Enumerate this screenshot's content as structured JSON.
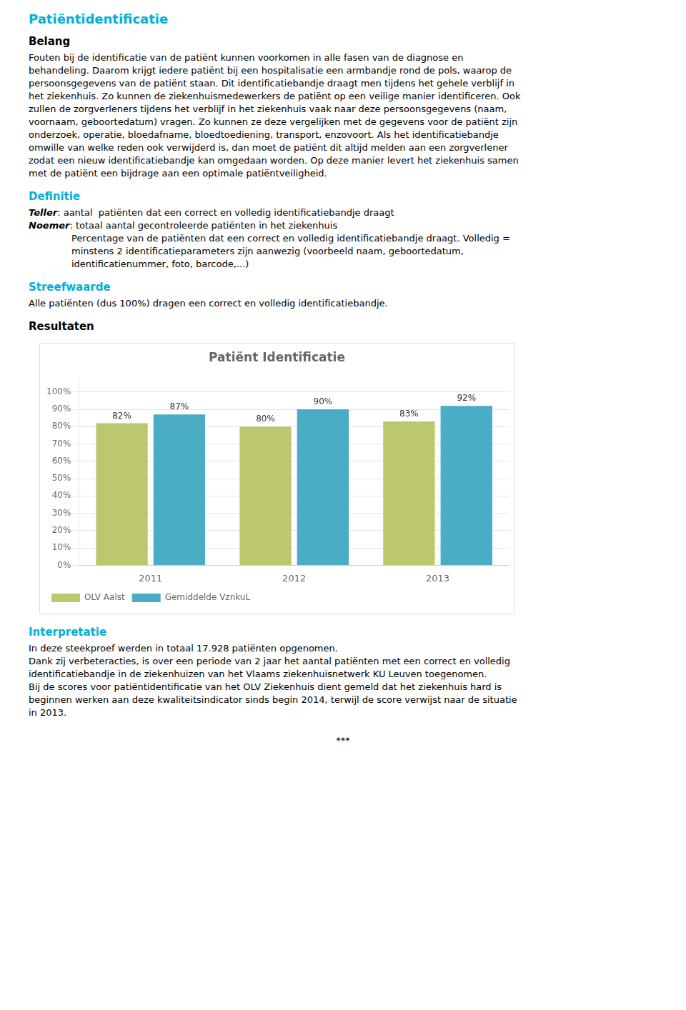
{
  "title": "Patiëntidentificatie",
  "title_color": "#00b0d8",
  "sections": [
    {
      "heading": "Belang",
      "color": "#000000",
      "lines": [
        "Fouten bij de identificatie van de patiënt kunnen voorkomen in alle fasen van de diagnose en",
        "behandeling. Daarom krijgt iedere patiënt bij een hospitalisatie een armbandje rond de pols, waarop de",
        "persoonsgegevens van de patiënt staan. Dit identificatiebandje draagt men tijdens het gehele verblijf in",
        "het ziekenhuis. Zo kunnen de ziekenhuismedewerkers de patiënt op een veilige manier identificeren. Ook",
        "zullen de zorgverleners tijdens het verblijf in het ziekenhuis vaak naar deze persoonsgegevens (naam,",
        "voornaam, geboortedatum) vragen. Zo kunnen ze deze vergelijken met de gegevens voor de patiënt zijn",
        "onderzoek, operatie, bloedafname, bloedtoediening, transport, enzovoort. Als het identificatiebandje",
        "omwille van welke reden ook verwijderd is, dan moet de patiënt dit altijd melden aan een zorgverlener",
        "zodat een nieuw identificatiebandje kan omgedaan worden. Op deze manier levert het ziekenhuis samen",
        "met de patiënt een bijdrage aan een optimale patiëntveiligheid."
      ]
    },
    {
      "heading": "Definitie",
      "color": "#00b0d8",
      "definitions": [
        {
          "term": "Teller",
          "text": ": aantal  patiënten dat een correct en volledig identificatiebandje draagt"
        },
        {
          "term": "Noemer",
          "text": ": totaal aantal gecontroleerde patiënten in het ziekenhuis"
        }
      ],
      "note_lines": [
        "Percentage van de patiënten dat een correct en volledig identificatiebandje draagt. Volledig =",
        "minstens 2 identificatieparameters zijn aanwezig (voorbeeld naam, geboortedatum,",
        "identificatienummer, foto, barcode,...)"
      ]
    },
    {
      "heading": "Streefwaarde",
      "color": "#00b0d8",
      "lines": [
        "Alle patiënten (dus 100%) dragen een correct en volledig identificatiebandje."
      ]
    },
    {
      "heading": "Resultaten",
      "color": "#000000",
      "lines": []
    }
  ],
  "chart_data": {
    "type": "bar",
    "title": "Patiënt Identificatie",
    "categories": [
      "2011",
      "2012",
      "2013"
    ],
    "series": [
      {
        "name": "OLV Aalst",
        "color": "#bdc86e",
        "values": [
          82,
          80,
          83
        ],
        "value_labels": [
          "82%",
          "80%",
          "83%"
        ]
      },
      {
        "name": "Gemiddelde VznkuL",
        "color": "#4bacc6",
        "values": [
          87,
          90,
          92
        ],
        "value_labels": [
          "87%",
          "90%",
          "92%"
        ]
      }
    ],
    "ylim": [
      0,
      108
    ],
    "yticks": [
      {
        "value": 0,
        "label": "0%"
      },
      {
        "value": 10,
        "label": "10%"
      },
      {
        "value": 20,
        "label": "20%"
      },
      {
        "value": 30,
        "label": "30%"
      },
      {
        "value": 40,
        "label": "40%"
      },
      {
        "value": 50,
        "label": "50%"
      },
      {
        "value": 60,
        "label": "60%"
      },
      {
        "value": 70,
        "label": "70%"
      },
      {
        "value": 80,
        "label": "80%"
      },
      {
        "value": 90,
        "label": "90%"
      },
      {
        "value": 100,
        "label": "100%"
      }
    ],
    "grid": true,
    "legend": "bottom",
    "data_labels": true
  },
  "closing_sections": [
    {
      "heading": "Interpretatie",
      "color": "#00b0d8",
      "lines": [
        "In deze steekproef werden in totaal 17.928 patiënten opgenomen.",
        "Dank zij verbeteracties, is over een periode van 2 jaar het aantal patiënten met een correct en volledig",
        "identificatiebandje in de ziekenhuizen van het Vlaams ziekenhuisnetwerk KU Leuven toegenomen.",
        "Bij de scores voor patiëntidentificatie van het OLV Ziekenhuis dient gemeld dat het ziekenhuis hard is",
        "beginnen werken aan deze kwaliteitsindicator sinds begin 2014, terwijl de score verwijst naar de situatie",
        "in 2013."
      ]
    }
  ],
  "footer": "***"
}
